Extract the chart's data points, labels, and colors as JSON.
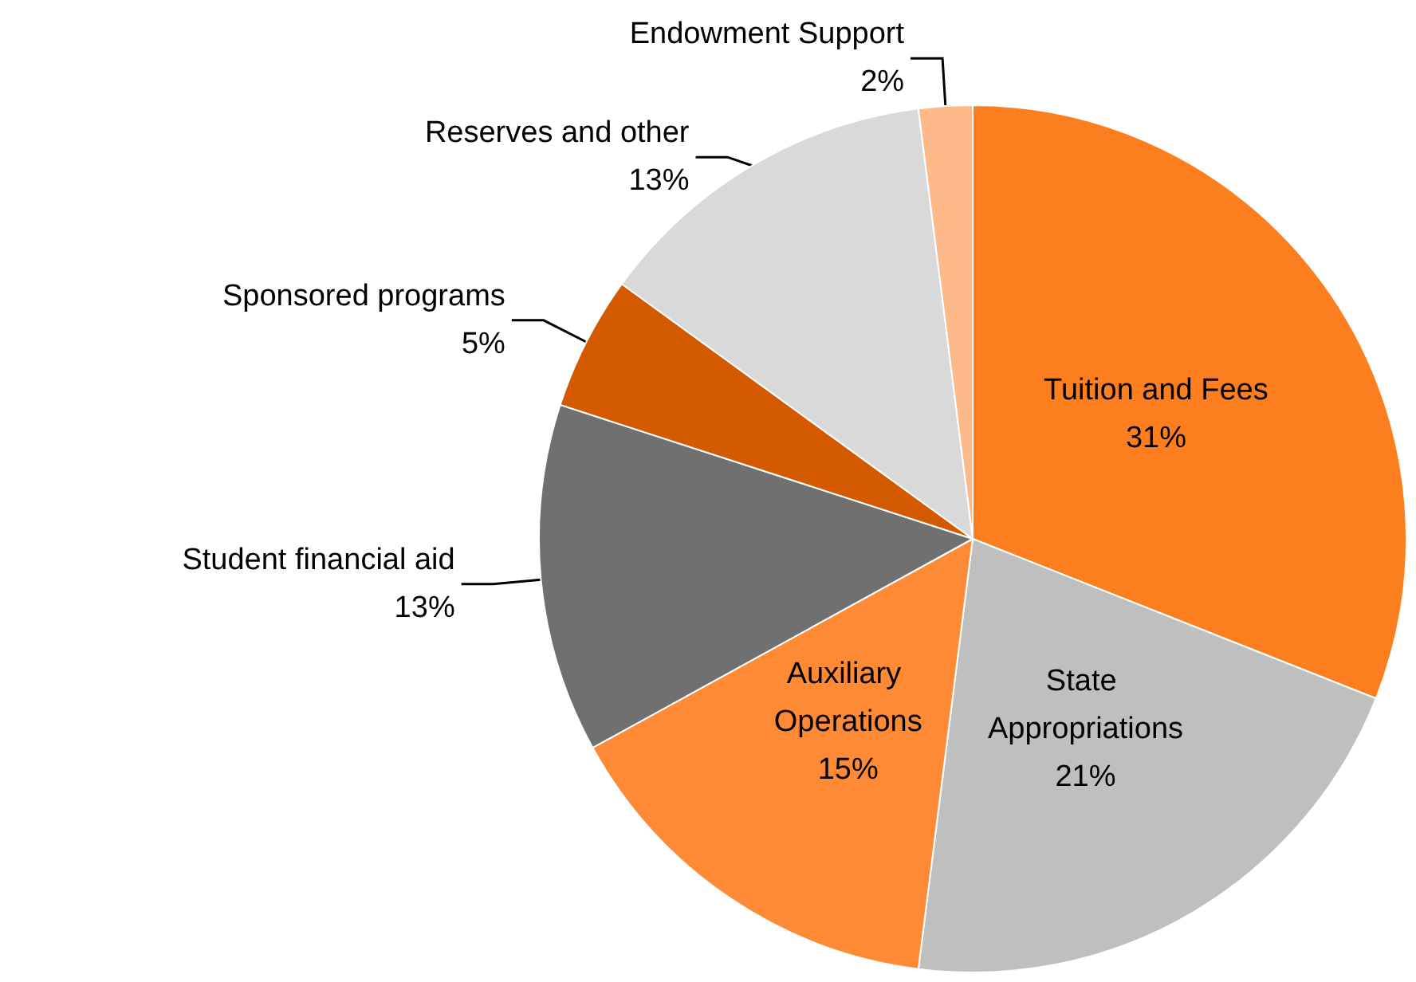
{
  "chart_data": {
    "type": "pie",
    "categories": [
      "Tuition and Fees",
      "State Appropriations",
      "Auxiliary Operations",
      "Student financial aid",
      "Sponsored programs",
      "Reserves and other",
      "Endowment Support"
    ],
    "values": [
      31,
      21,
      15,
      13,
      5,
      13,
      2
    ],
    "value_labels": [
      "31%",
      "21%",
      "15%",
      "13%",
      "5%",
      "13%",
      "2%"
    ],
    "colors": [
      "#fd7e1e",
      "#bfbfbf",
      "#fe8a36",
      "#707070",
      "#d35a00",
      "#d9d9d9",
      "#fdb98a"
    ],
    "legend": false
  }
}
